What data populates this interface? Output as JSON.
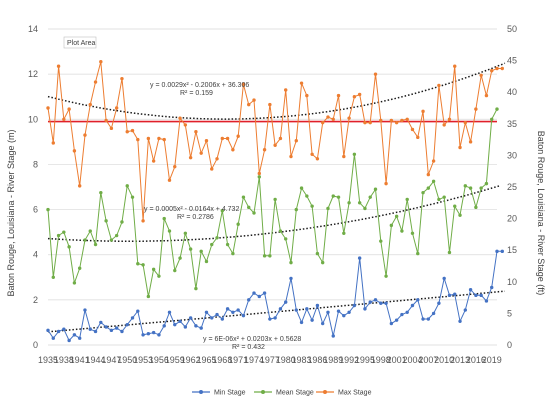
{
  "chart_data": {
    "type": "line",
    "xlabel": "",
    "ylabel": "Baton Rouge, Louisiana - River Stage (m)",
    "y2label": "Baton Rouge, Louisiana - River Stage (ft)",
    "ylim": [
      0,
      14
    ],
    "y_ticks": [
      "0",
      "2",
      "4",
      "6",
      "8",
      "10",
      "12",
      "14"
    ],
    "y2lim": [
      0,
      50
    ],
    "y2_ticks": [
      "0",
      "5",
      "10",
      "15",
      "20",
      "25",
      "30",
      "35",
      "40",
      "45",
      "50"
    ],
    "x_start": 1935,
    "x_end": 2020,
    "x_ticks": [
      "1935",
      "1938",
      "1941",
      "1944",
      "1947",
      "1950",
      "1953",
      "1956",
      "1959",
      "1962",
      "1965",
      "1968",
      "1971",
      "1974",
      "1977",
      "1980",
      "1983",
      "1986",
      "1989",
      "1992",
      "1995",
      "1998",
      "2001",
      "2004",
      "2007",
      "2010",
      "2013",
      "2016",
      "2019"
    ],
    "plot_area_label": "Plot Area",
    "reference_line": 9.9,
    "reference_color": "#e0202a",
    "series": [
      {
        "name": "Min Stage",
        "color": "#4472c4",
        "values": [
          0.65,
          0.3,
          0.6,
          0.7,
          0.2,
          0.45,
          0.3,
          1.55,
          0.7,
          0.6,
          1.0,
          0.8,
          0.65,
          0.75,
          0.6,
          0.9,
          1.2,
          1.5,
          0.45,
          0.5,
          0.55,
          0.45,
          0.85,
          1.45,
          0.9,
          1.05,
          0.8,
          1.2,
          0.85,
          0.75,
          1.45,
          1.2,
          1.35,
          1.15,
          1.6,
          1.45,
          1.55,
          1.3,
          2.0,
          2.3,
          2.15,
          2.3,
          1.15,
          1.2,
          1.6,
          1.9,
          2.95,
          1.55,
          1.0,
          1.6,
          1.1,
          1.75,
          0.95,
          1.45,
          0.4,
          1.5,
          1.3,
          1.45,
          1.75,
          3.85,
          1.6,
          1.9,
          2.0,
          1.85,
          1.85,
          0.95,
          1.1,
          1.35,
          1.45,
          1.75,
          2.0,
          1.15,
          1.15,
          1.4,
          1.85,
          2.95,
          2.2,
          2.25,
          1.05,
          1.55,
          2.45,
          2.2,
          2.2,
          1.95,
          2.55,
          4.15,
          4.15
        ]
      },
      {
        "name": "Mean Stage",
        "color": "#70ad47",
        "values": [
          6.0,
          3.0,
          4.85,
          5.0,
          4.35,
          2.75,
          3.4,
          4.65,
          5.05,
          4.45,
          6.75,
          5.5,
          4.65,
          4.85,
          5.45,
          7.05,
          6.55,
          3.6,
          3.55,
          2.15,
          3.35,
          3.05,
          5.6,
          5.05,
          3.3,
          3.85,
          4.95,
          4.25,
          2.5,
          4.15,
          3.7,
          4.45,
          4.75,
          5.95,
          4.45,
          4.05,
          5.35,
          6.55,
          6.1,
          5.85,
          7.45,
          3.95,
          3.95,
          6.45,
          5.05,
          4.7,
          3.65,
          6.0,
          6.95,
          6.6,
          6.15,
          4.05,
          3.65,
          6.05,
          6.6,
          6.55,
          4.95,
          6.3,
          8.45,
          6.3,
          6.05,
          6.55,
          6.9,
          4.6,
          3.05,
          5.3,
          5.7,
          5.05,
          6.45,
          4.95,
          4.05,
          6.75,
          6.95,
          7.25,
          6.45,
          6.55,
          4.1,
          6.15,
          5.75,
          7.05,
          6.95,
          6.1,
          6.95,
          7.15,
          10.0,
          10.45
        ]
      },
      {
        "name": "Max Stage",
        "color": "#ed7d31",
        "values": [
          10.5,
          8.95,
          12.35,
          10.0,
          10.45,
          8.6,
          7.05,
          9.3,
          10.65,
          11.65,
          12.55,
          9.95,
          9.6,
          10.5,
          11.8,
          9.45,
          9.5,
          9.1,
          5.5,
          9.15,
          8.15,
          9.15,
          9.1,
          7.3,
          7.9,
          10.05,
          9.75,
          8.3,
          9.45,
          8.5,
          9.05,
          7.8,
          8.25,
          9.15,
          9.15,
          8.65,
          9.25,
          11.55,
          10.65,
          10.85,
          7.6,
          8.65,
          10.65,
          8.85,
          9.15,
          11.3,
          8.35,
          9.05,
          11.6,
          11.05,
          8.45,
          8.25,
          9.85,
          10.1,
          10.0,
          11.05,
          8.35,
          10.05,
          11.0,
          11.1,
          9.85,
          9.85,
          12.0,
          9.95,
          7.15,
          9.95,
          9.85,
          9.95,
          10.0,
          9.55,
          9.2,
          10.35,
          7.55,
          8.15,
          11.5,
          9.75,
          10.0,
          12.35,
          8.75,
          9.85,
          9.0,
          10.45,
          11.95,
          11.05,
          12.15,
          12.25,
          12.25
        ]
      }
    ],
    "trendlines": [
      {
        "series": "Max Stage",
        "equation": "y = 0.0029x² - 0.2006x + 36.306",
        "r2": "R² = 0.159",
        "coef": [
          0.0029,
          -0.2006,
          36.306
        ],
        "display_scale": "ft"
      },
      {
        "series": "Mean Stage",
        "equation": "y = 0.0005x² - 0.0164x + 4.732",
        "r2": "R² = 0.2786",
        "coef": [
          0.0005,
          -0.0164,
          4.732
        ],
        "display_scale": "m"
      },
      {
        "series": "Min Stage",
        "equation": "y = 6E-06x² + 0.0203x + 0.5628",
        "r2": "R² = 0.432",
        "coef": [
          6e-06,
          0.0203,
          0.5628
        ],
        "display_scale": "m"
      }
    ],
    "legend": [
      "Min Stage",
      "Mean Stage",
      "Max Stage"
    ],
    "legend_position": "bottom",
    "grid": true
  }
}
